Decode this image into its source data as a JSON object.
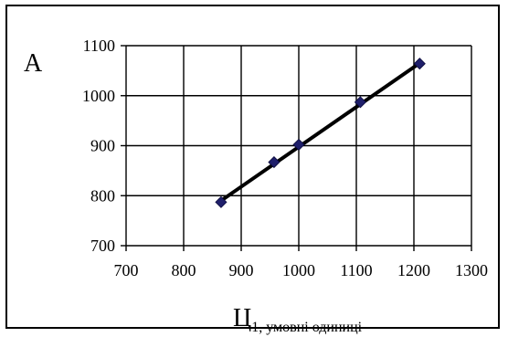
{
  "chart_data": {
    "type": "scatter",
    "ylabel": "A",
    "xlabel_main": "Ц",
    "xlabel_sub": "1, умовні одиниці",
    "xlim": [
      700,
      1300
    ],
    "ylim": [
      700,
      1100
    ],
    "xticks": [
      700,
      800,
      900,
      1000,
      1100,
      1200,
      1300
    ],
    "yticks": [
      700,
      800,
      900,
      1000,
      1100
    ],
    "grid": true,
    "marker_color": "#1f1f6b",
    "line_color": "#000000",
    "points": [
      {
        "x": 865,
        "y": 787
      },
      {
        "x": 957,
        "y": 867
      },
      {
        "x": 1000,
        "y": 902
      },
      {
        "x": 1107,
        "y": 987
      },
      {
        "x": 1210,
        "y": 1064
      }
    ],
    "trendline": {
      "x": [
        865,
        1210
      ],
      "y": [
        790,
        1065
      ]
    }
  }
}
